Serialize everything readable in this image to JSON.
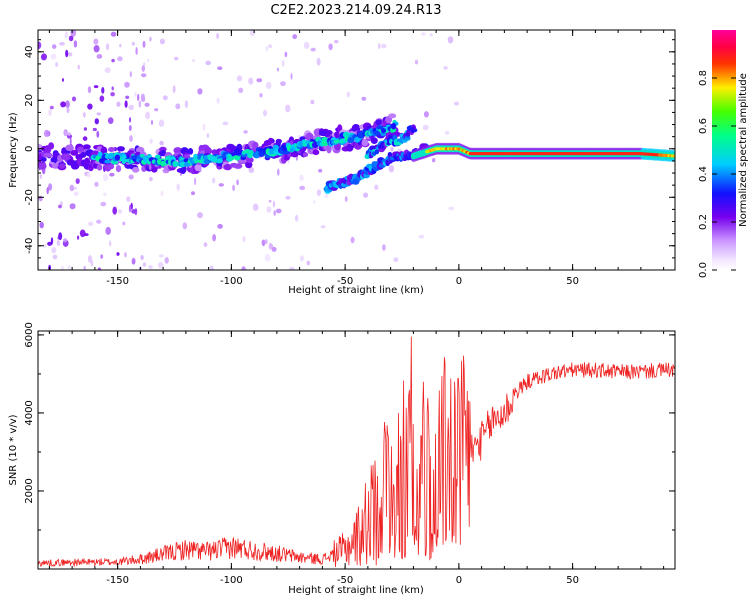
{
  "title": "C2E2.2023.214.09.24.R13",
  "chart_data": [
    {
      "type": "heatmap",
      "name": "spectrogram",
      "xlabel": "Height of straight line (km)",
      "ylabel": "Frequency (Hz)",
      "xlim": [
        -185,
        95
      ],
      "ylim": [
        -50,
        49
      ],
      "xticks": [
        -150,
        -100,
        -50,
        0,
        50
      ],
      "yticks": [
        -40,
        -20,
        0,
        20,
        40
      ],
      "colorbar": {
        "label": "Normalized spectral amplitude",
        "range": [
          0.0,
          1.0
        ],
        "ticks": [
          "0.0",
          "0.2",
          "0.4",
          "0.6",
          "0.8"
        ],
        "tick_values": [
          0.0,
          0.2,
          0.4,
          0.6,
          0.8
        ]
      },
      "ridges": [
        {
          "name": "main-band",
          "points": [
            [
              -185,
              -3
            ],
            [
              -150,
              -4
            ],
            [
              -120,
              -5
            ],
            [
              -100,
              -3
            ],
            [
              -80,
              -1
            ],
            [
              -60,
              3
            ],
            [
              -45,
              5
            ],
            [
              -35,
              7
            ],
            [
              -27,
              10
            ]
          ],
          "amplitude": 0.3
        },
        {
          "name": "lower-branch",
          "points": [
            [
              -58,
              -16
            ],
            [
              -45,
              -12
            ],
            [
              -38,
              -8
            ],
            [
              -30,
              -4
            ],
            [
              -20,
              -2
            ],
            [
              -15,
              0
            ]
          ],
          "amplitude": 0.35
        },
        {
          "name": "mid-branch",
          "points": [
            [
              -40,
              -2
            ],
            [
              -32,
              2
            ],
            [
              -25,
              4
            ],
            [
              -20,
              8
            ]
          ],
          "amplitude": 0.3
        },
        {
          "name": "tone",
          "points": [
            [
              -20,
              -3
            ],
            [
              -10,
              0
            ],
            [
              0,
              0
            ],
            [
              5,
              -2
            ],
            [
              10,
              -2
            ],
            [
              80,
              -2
            ],
            [
              95,
              -3
            ]
          ],
          "amplitude": 1.0
        }
      ]
    },
    {
      "type": "line",
      "name": "snr",
      "xlabel": "Height of straight line (km)",
      "ylabel": "SNR (10 * v/v)",
      "xlim": [
        -185,
        95
      ],
      "ylim": [
        0,
        6100
      ],
      "xticks": [
        -150,
        -100,
        -50,
        0,
        50
      ],
      "yticks": [
        2000,
        4000,
        6000
      ],
      "series": [
        {
          "name": "SNR",
          "color": "#ee2222",
          "x": [
            -185,
            -170,
            -150,
            -140,
            -130,
            -120,
            -110,
            -100,
            -90,
            -80,
            -70,
            -60,
            -50,
            -45,
            -40,
            -35,
            -30,
            -25,
            -20,
            -15,
            -10,
            -5,
            0,
            5,
            10,
            15,
            20,
            25,
            30,
            40,
            50,
            60,
            70,
            80,
            90,
            95
          ],
          "y": [
            150,
            170,
            180,
            250,
            380,
            500,
            450,
            560,
            480,
            400,
            300,
            250,
            500,
            800,
            1250,
            1800,
            2400,
            2600,
            2400,
            2600,
            2800,
            2900,
            2800,
            3000,
            3300,
            3800,
            4000,
            4500,
            4800,
            5000,
            5100,
            5100,
            5050,
            5050,
            5100,
            5100
          ]
        }
      ]
    }
  ]
}
